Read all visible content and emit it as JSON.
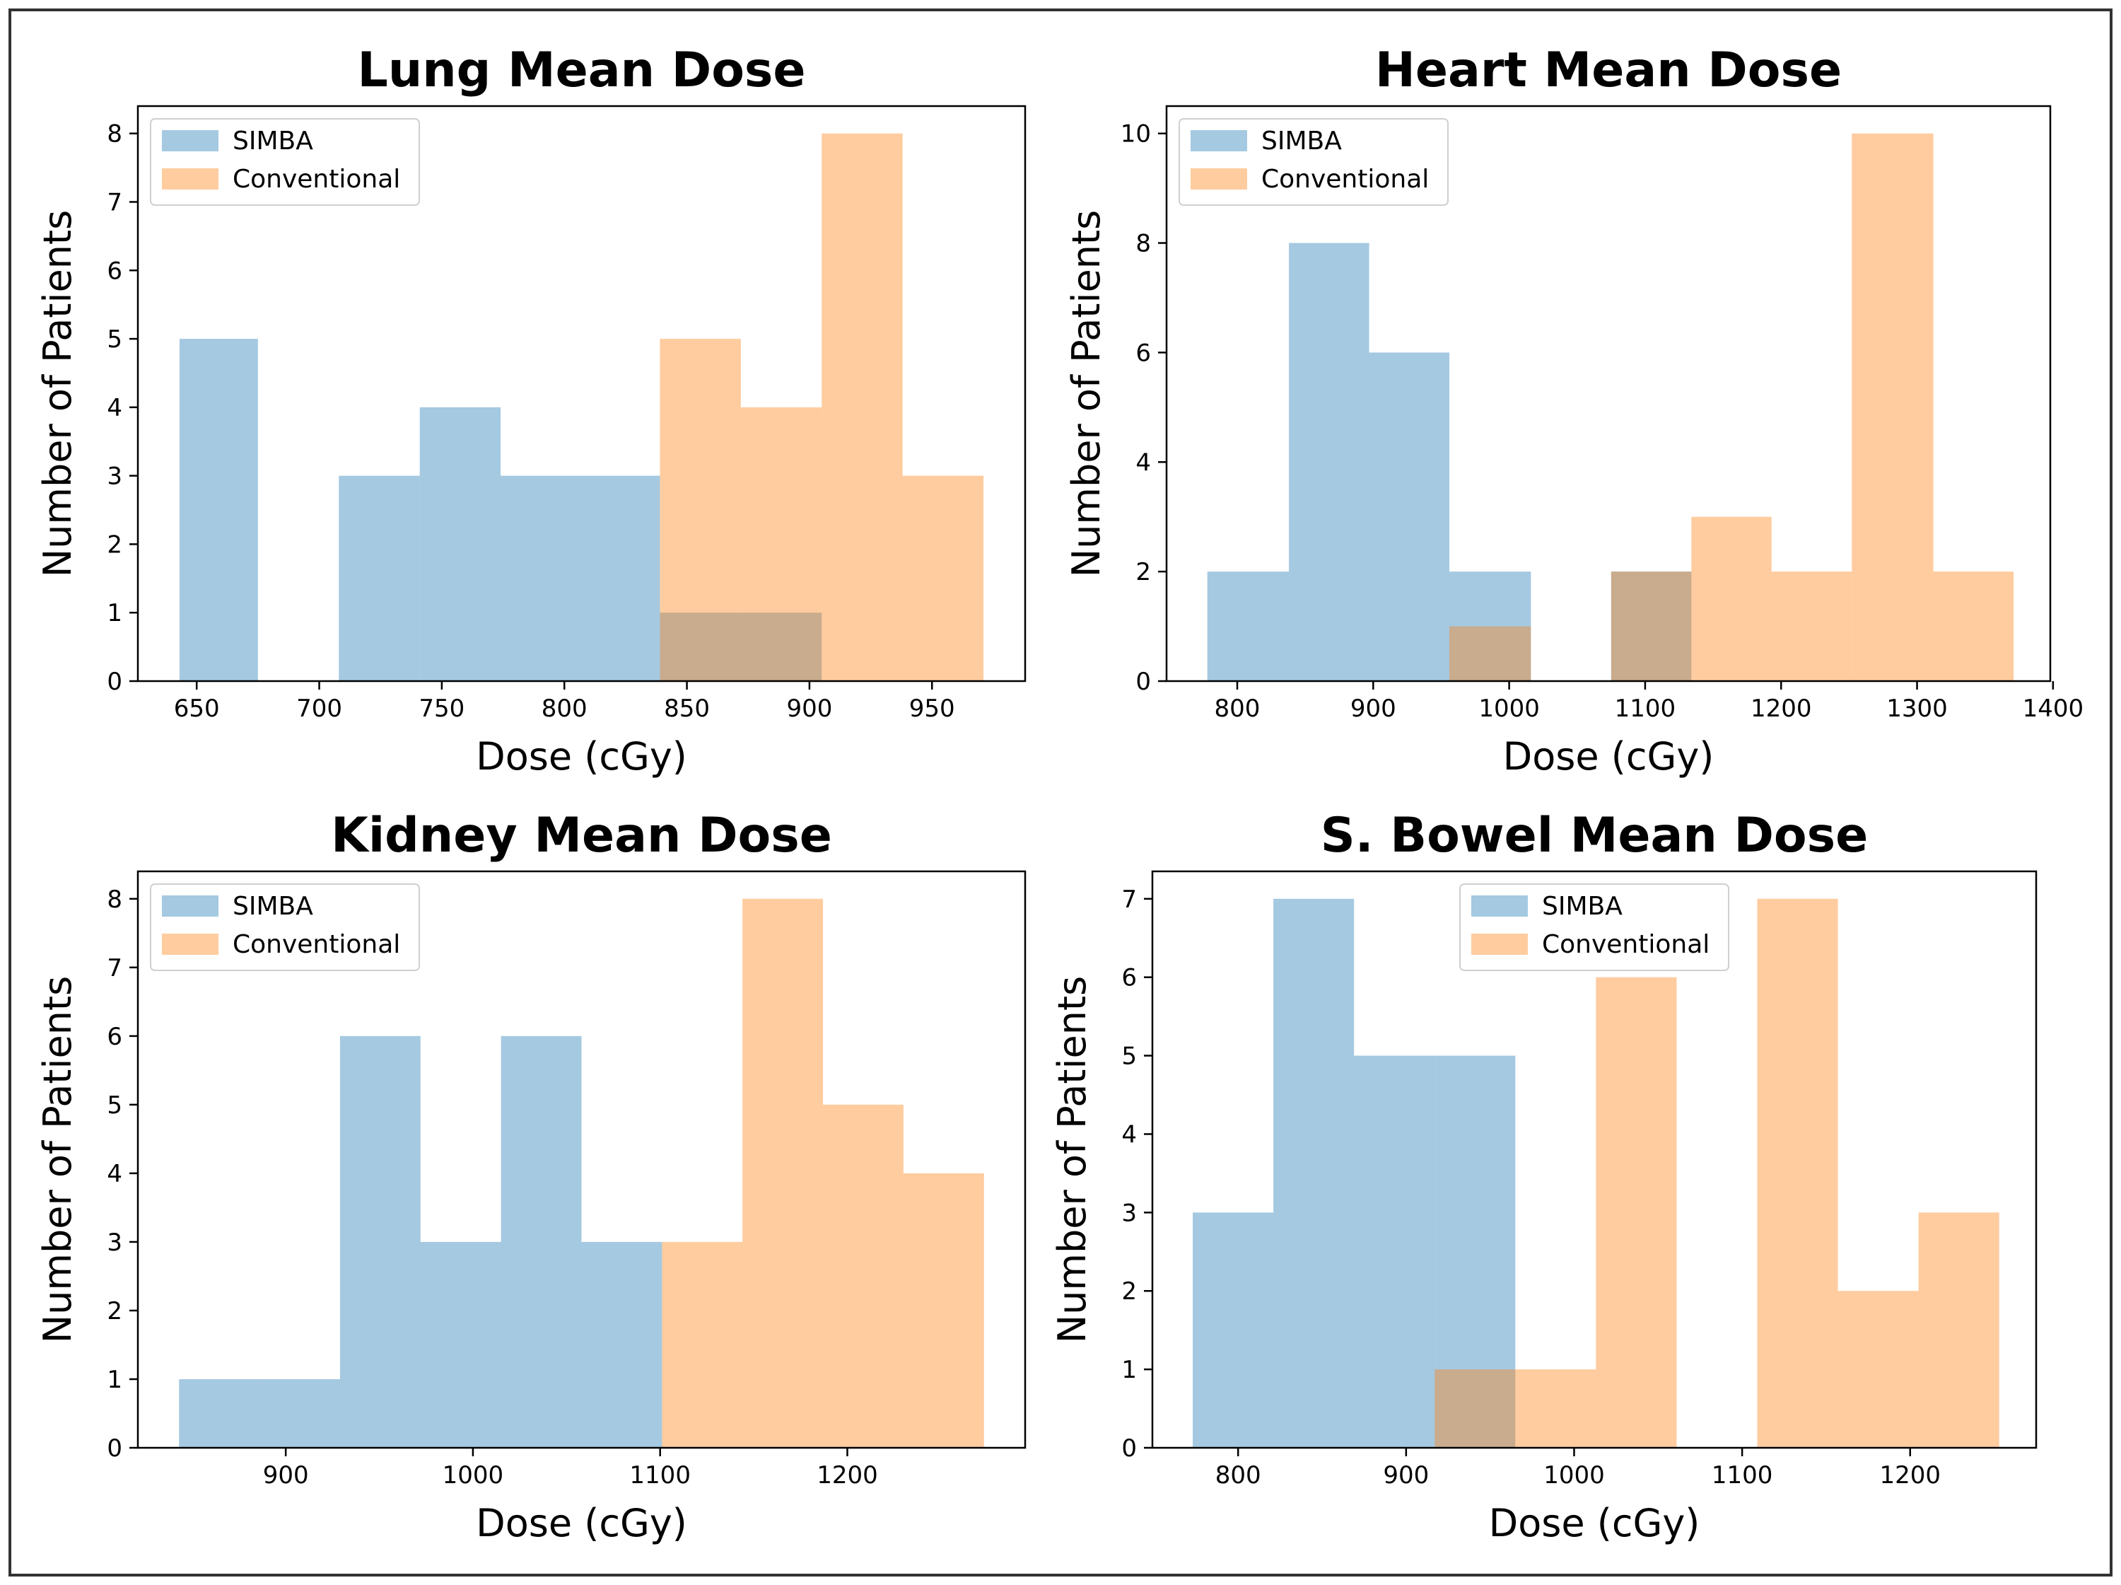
{
  "colors": {
    "simba": "#1f77b4",
    "conventional": "#ff7f0e",
    "overlap": "#8c7a5e"
  },
  "legend_labels": [
    "SIMBA",
    "Conventional"
  ],
  "chart_data": [
    {
      "id": "lung",
      "type": "histogram",
      "title": "Lung Mean Dose",
      "xlabel": "Dose (cGy)",
      "ylabel": "Number of Patients",
      "xlim": [
        626,
        988
      ],
      "ylim": [
        0,
        8.4
      ],
      "xticks": [
        650,
        700,
        750,
        800,
        850,
        900,
        950
      ],
      "yticks": [
        0,
        1,
        2,
        3,
        4,
        5,
        6,
        7,
        8
      ],
      "legend_position": "top-left",
      "series": [
        {
          "name": "SIMBA",
          "color": "#1f77b4",
          "bins": [
            [
              643,
              675,
              5
            ],
            [
              675,
              708,
              0
            ],
            [
              708,
              741,
              3
            ],
            [
              741,
              774,
              4
            ],
            [
              774,
              806,
              3
            ],
            [
              806,
              839,
              3
            ],
            [
              839,
              872,
              1
            ],
            [
              872,
              905,
              1
            ]
          ]
        },
        {
          "name": "Conventional",
          "color": "#ff7f0e",
          "bins": [
            [
              839,
              872,
              5
            ],
            [
              872,
              905,
              4
            ],
            [
              905,
              938,
              8
            ],
            [
              938,
              971,
              3
            ]
          ]
        }
      ]
    },
    {
      "id": "heart",
      "type": "histogram",
      "title": "Heart Mean Dose",
      "xlabel": "Dose (cGy)",
      "ylabel": "Number of Patients",
      "xlim": [
        748,
        1398
      ],
      "ylim": [
        0,
        10.5
      ],
      "xticks": [
        800,
        900,
        1000,
        1100,
        1200,
        1300,
        1400
      ],
      "yticks": [
        0,
        2,
        4,
        6,
        8,
        10
      ],
      "legend_position": "top-left",
      "series": [
        {
          "name": "SIMBA",
          "color": "#1f77b4",
          "bins": [
            [
              778,
              838,
              2
            ],
            [
              838,
              897,
              8
            ],
            [
              897,
              956,
              6
            ],
            [
              956,
              1016,
              2
            ],
            [
              1075,
              1134,
              2
            ]
          ]
        },
        {
          "name": "Conventional",
          "color": "#ff7f0e",
          "bins": [
            [
              956,
              1016,
              1
            ],
            [
              1075,
              1134,
              2
            ],
            [
              1134,
              1193,
              3
            ],
            [
              1193,
              1252,
              2
            ],
            [
              1252,
              1312,
              10
            ],
            [
              1312,
              1371,
              2
            ]
          ]
        }
      ]
    },
    {
      "id": "kidney",
      "type": "histogram",
      "title": "Kidney Mean Dose",
      "xlabel": "Dose (cGy)",
      "ylabel": "Number of Patients",
      "xlim": [
        821,
        1295
      ],
      "ylim": [
        0,
        8.4
      ],
      "xticks": [
        900,
        1000,
        1100,
        1200
      ],
      "yticks": [
        0,
        1,
        2,
        3,
        4,
        5,
        6,
        7,
        8
      ],
      "legend_position": "top-left",
      "series": [
        {
          "name": "SIMBA",
          "color": "#1f77b4",
          "bins": [
            [
              843,
              886,
              1
            ],
            [
              886,
              929,
              1
            ],
            [
              929,
              972,
              6
            ],
            [
              972,
              1015,
              3
            ],
            [
              1015,
              1058,
              6
            ],
            [
              1058,
              1101,
              3
            ]
          ]
        },
        {
          "name": "Conventional",
          "color": "#ff7f0e",
          "bins": [
            [
              1101,
              1144,
              3
            ],
            [
              1144,
              1187,
              8
            ],
            [
              1187,
              1230,
              5
            ],
            [
              1230,
              1273,
              4
            ]
          ]
        }
      ]
    },
    {
      "id": "bowel",
      "type": "histogram",
      "title": "S. Bowel Mean Dose",
      "xlabel": "Dose (cGy)",
      "ylabel": "Number of Patients",
      "xlim": [
        749,
        1275
      ],
      "ylim": [
        0,
        7.35
      ],
      "xticks": [
        800,
        900,
        1000,
        1100,
        1200
      ],
      "yticks": [
        0,
        1,
        2,
        3,
        4,
        5,
        6,
        7
      ],
      "legend_position": "top-center",
      "series": [
        {
          "name": "SIMBA",
          "color": "#1f77b4",
          "bins": [
            [
              773,
              821,
              3
            ],
            [
              821,
              869,
              7
            ],
            [
              869,
              917,
              5
            ],
            [
              917,
              965,
              5
            ]
          ]
        },
        {
          "name": "Conventional",
          "color": "#ff7f0e",
          "bins": [
            [
              917,
              965,
              1
            ],
            [
              965,
              1013,
              1
            ],
            [
              1013,
              1061,
              6
            ],
            [
              1061,
              1109,
              0
            ],
            [
              1109,
              1157,
              7
            ],
            [
              1157,
              1205,
              2
            ],
            [
              1205,
              1253,
              3
            ]
          ]
        }
      ]
    }
  ]
}
